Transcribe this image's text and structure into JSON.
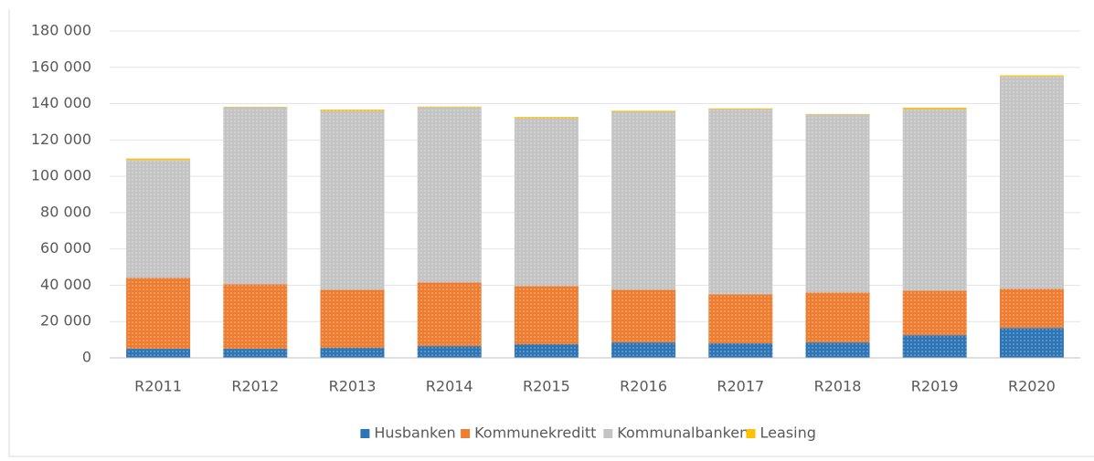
{
  "chart_data": {
    "type": "stacked_bar",
    "categories": [
      "R2011",
      "R2012",
      "R2013",
      "R2014",
      "R2015",
      "R2016",
      "R2017",
      "R2018",
      "R2019",
      "R2020"
    ],
    "series": [
      {
        "name": "Husbanken",
        "color": "#2e75b6",
        "values": [
          5000,
          5000,
          5500,
          6500,
          7500,
          8500,
          8000,
          8500,
          12500,
          16500
        ]
      },
      {
        "name": "Kommunekreditt",
        "color": "#ed7d31",
        "values": [
          39000,
          35500,
          32000,
          35000,
          32000,
          29000,
          27000,
          27500,
          24500,
          21500
        ]
      },
      {
        "name": "Kommunalbanken",
        "color": "#c4c4c4",
        "values": [
          65000,
          97500,
          98500,
          96500,
          92500,
          98000,
          102000,
          98000,
          100000,
          117000
        ]
      },
      {
        "name": "Leasing",
        "color": "#ffc000",
        "values": [
          800,
          300,
          800,
          400,
          700,
          600,
          400,
          300,
          800,
          600
        ]
      }
    ],
    "ylim": [
      0,
      180000
    ],
    "yticks": [
      {
        "value": 0,
        "label": "0"
      },
      {
        "value": 20000,
        "label": "20 000"
      },
      {
        "value": 40000,
        "label": "40 000"
      },
      {
        "value": 60000,
        "label": "60 000"
      },
      {
        "value": 80000,
        "label": "80 000"
      },
      {
        "value": 100000,
        "label": "100 000"
      },
      {
        "value": 120000,
        "label": "120 000"
      },
      {
        "value": 140000,
        "label": "140 000"
      },
      {
        "value": 160000,
        "label": "160 000"
      },
      {
        "value": 180000,
        "label": "180 000"
      }
    ],
    "grid": true,
    "legend": "bottom"
  }
}
